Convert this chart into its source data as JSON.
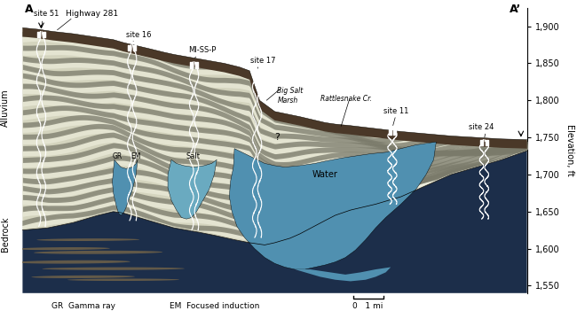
{
  "ylabel": "Elevation, ft",
  "yticks": [
    1550,
    1600,
    1650,
    1700,
    1750,
    1800,
    1850,
    1900
  ],
  "ylim": [
    1540,
    1925
  ],
  "xlim": [
    0,
    10
  ],
  "bedrock_color": "#1c2e4a",
  "bedrock_stripe_color": "#7a6848",
  "alluvium_base_color": "#d4d4be",
  "alluvium_dark_stripe": "#7a7a6a",
  "alluvium_light_blob": "#efefdf",
  "topsoil_color": "#4a3828",
  "water_color": "#5090b0",
  "salt_color": "#6aaac0",
  "log_color": "#ffffff",
  "label_color": "#000000"
}
